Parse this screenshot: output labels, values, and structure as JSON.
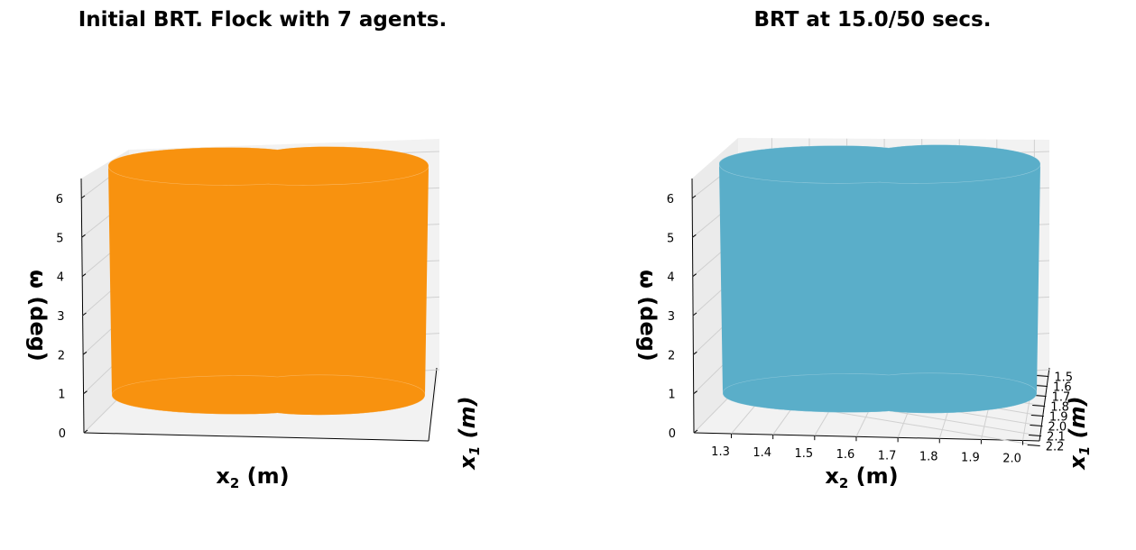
{
  "chart_data": [
    {
      "type": "surface3d",
      "title": "Initial BRT. Flock with 7 agents.",
      "color": "#f8920f",
      "xlabel": "x",
      "xlabel_sub": "2",
      "xlabel_unit": " (m)",
      "ylabel": "x",
      "ylabel_sub": "1",
      "ylabel_unit": " (m)",
      "zlabel": "ω (deg)",
      "z_ticks": [
        "0",
        "1",
        "2",
        "3",
        "4",
        "5",
        "6"
      ],
      "x_ticks": [],
      "y_ticks": []
    },
    {
      "type": "surface3d",
      "title": "BRT at 15.0/50 secs.",
      "color": "#5aaec9",
      "xlabel": "x",
      "xlabel_sub": "2",
      "xlabel_unit": " (m)",
      "ylabel": "x",
      "ylabel_sub": "1",
      "ylabel_unit": " (m)",
      "zlabel": "ω (deg)",
      "z_ticks": [
        "0",
        "1",
        "2",
        "3",
        "4",
        "5",
        "6"
      ],
      "x_ticks": [
        "1.3",
        "1.4",
        "1.5",
        "1.6",
        "1.7",
        "1.8",
        "1.9",
        "2.0"
      ],
      "y_ticks": [
        "1.5",
        "1.6",
        "1.7",
        "1.8",
        "1.9",
        "2.0",
        "2.1",
        "2.2"
      ]
    }
  ]
}
